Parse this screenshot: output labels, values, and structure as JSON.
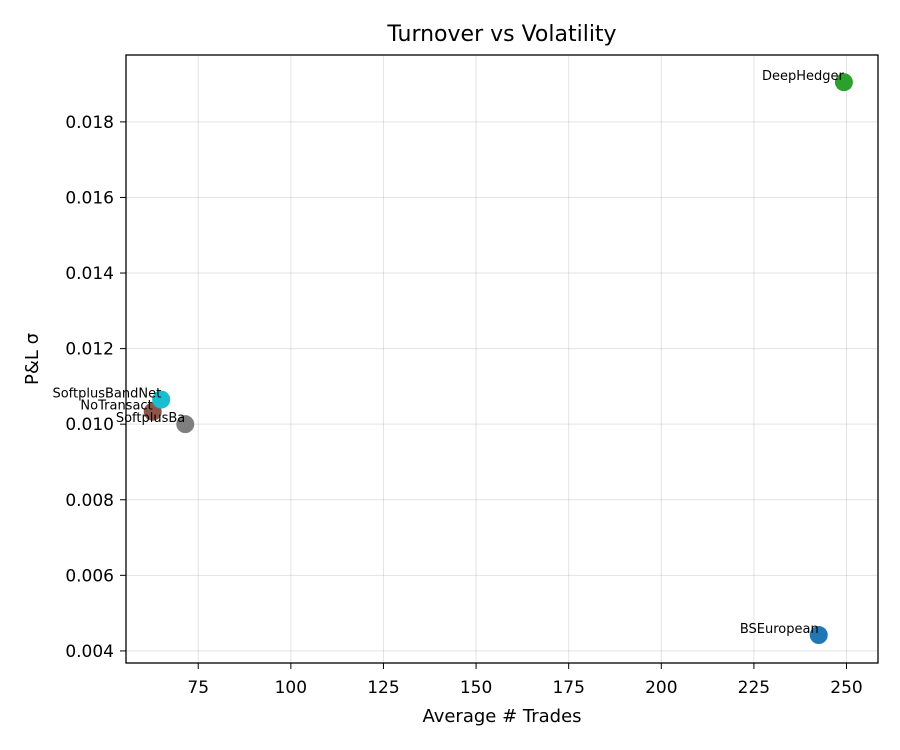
{
  "chart_data": {
    "type": "scatter",
    "title": "Turnover vs Volatility",
    "xlabel": "Average # Trades",
    "ylabel": "P&L σ",
    "xlim": [
      55.5,
      258.5
    ],
    "ylim": [
      0.00368,
      0.01977
    ],
    "xticks": [
      75,
      100,
      125,
      150,
      175,
      200,
      225,
      250
    ],
    "xtick_labels": [
      "75",
      "100",
      "125",
      "150",
      "175",
      "200",
      "225",
      "250"
    ],
    "yticks": [
      0.004,
      0.006,
      0.008,
      0.01,
      0.012,
      0.014,
      0.016,
      0.018
    ],
    "ytick_labels": [
      "0.004",
      "0.006",
      "0.008",
      "0.010",
      "0.012",
      "0.014",
      "0.016",
      "0.018"
    ],
    "grid": true,
    "legend": false,
    "points": [
      {
        "label": "BSEuropean",
        "x": 242.5,
        "y": 0.00442,
        "color": "#1f77b4"
      },
      {
        "label": "DeepHedger",
        "x": 249.3,
        "y": 0.01905,
        "color": "#2ca02c"
      },
      {
        "label": "NoTransact",
        "x": 62.7,
        "y": 0.01033,
        "color": "#8c564b"
      },
      {
        "label": "SoftplusBa",
        "x": 71.5,
        "y": 0.01,
        "color": "#7f7f7f"
      },
      {
        "label": "SoftplusBandNet",
        "x": 65.0,
        "y": 0.01065,
        "color": "#17becf"
      }
    ]
  }
}
